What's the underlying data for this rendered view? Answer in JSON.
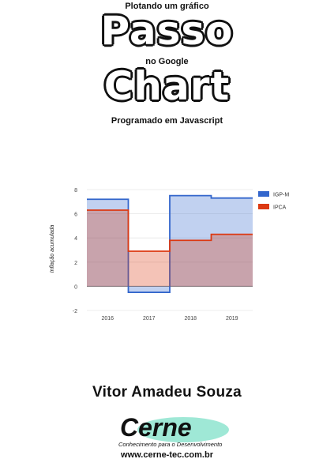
{
  "cover": {
    "top_line": "Plotando um gráfico",
    "word1": "Passo",
    "mid_line": "no Google",
    "word2": "Chart",
    "bottom_line": "Programado em Javascript",
    "author": "Vitor Amadeu Souza",
    "logo_name": "Cerne",
    "logo_tagline": "Conhecimento para o Desenvolvimento",
    "website": "www.cerne-tec.com.br"
  },
  "chart_data": {
    "type": "area",
    "style": "stepped",
    "categories": [
      "2016",
      "2017",
      "2018",
      "2019"
    ],
    "series": [
      {
        "name": "IGP-M",
        "values": [
          7.2,
          -0.5,
          7.5,
          7.3
        ],
        "color": "#3366cc"
      },
      {
        "name": "IPCA",
        "values": [
          6.3,
          2.9,
          3.8,
          4.3
        ],
        "color": "#dc3912"
      }
    ],
    "ylabel": "Inflação acumulada",
    "ylim": [
      -2,
      8
    ],
    "yticks": [
      -2,
      0,
      2,
      4,
      6,
      8
    ],
    "legend": "right",
    "grid": true
  }
}
